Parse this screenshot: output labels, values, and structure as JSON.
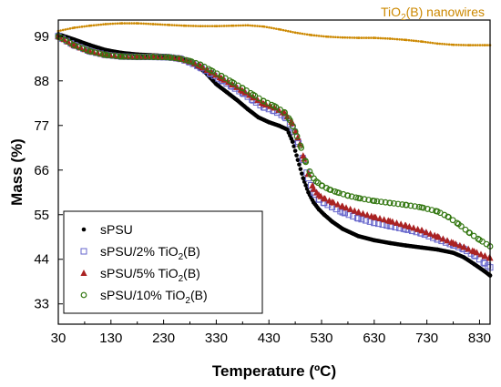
{
  "chart_data": {
    "type": "scatter",
    "xlabel": "Temperature (ºC)",
    "ylabel": "Mass (%)",
    "xlim": [
      30,
      850
    ],
    "ylim": [
      28,
      103
    ],
    "xticks": [
      30,
      130,
      230,
      330,
      430,
      530,
      630,
      730,
      830
    ],
    "yticks": [
      33,
      44,
      55,
      66,
      77,
      88,
      99
    ],
    "grid": false,
    "legend_position": "bottom-left",
    "annotation": {
      "text": "TiO",
      "sub": "2",
      "suffix": "(B) nanowires",
      "color": "#cc8800"
    },
    "series": [
      {
        "name": "sPSU",
        "legend": {
          "main": "sPSU",
          "sub": "",
          "suffix": ""
        },
        "marker": "dot",
        "color": "#000000",
        "x": [
          30,
          60,
          90,
          120,
          150,
          180,
          210,
          240,
          260,
          280,
          300,
          310,
          320,
          330,
          350,
          370,
          390,
          410,
          430,
          450,
          465,
          475,
          485,
          495,
          505,
          515,
          525,
          535,
          550,
          570,
          600,
          630,
          660,
          690,
          720,
          750,
          780,
          800,
          820,
          840,
          850
        ],
        "y": [
          99.5,
          98.2,
          96.8,
          95.6,
          94.9,
          94.5,
          94.3,
          94.1,
          93.6,
          92.6,
          91.0,
          90.0,
          88.6,
          87.2,
          85.2,
          83.2,
          81.0,
          79.0,
          77.8,
          76.9,
          76.0,
          73.0,
          68.5,
          64.0,
          60.5,
          58.0,
          56.3,
          55.0,
          53.3,
          51.5,
          49.7,
          48.7,
          48.0,
          47.4,
          46.9,
          46.4,
          45.6,
          44.5,
          42.8,
          41.0,
          40.0
        ]
      },
      {
        "name": "sPSU/2% TiO2(B)",
        "legend": {
          "main": "sPSU/2% TiO",
          "sub": "2",
          "suffix": "(B)"
        },
        "marker": "open-square",
        "color": "#6666cc",
        "x": [
          30,
          60,
          90,
          120,
          150,
          180,
          210,
          240,
          260,
          280,
          300,
          320,
          340,
          360,
          380,
          400,
          420,
          440,
          460,
          475,
          485,
          495,
          505,
          515,
          525,
          535,
          550,
          570,
          600,
          630,
          660,
          690,
          720,
          750,
          780,
          800,
          820,
          840,
          850
        ],
        "y": [
          99.0,
          96.8,
          95.3,
          94.4,
          94.0,
          93.9,
          93.9,
          93.8,
          93.5,
          92.6,
          91.3,
          89.7,
          88.1,
          86.6,
          85.0,
          83.2,
          81.5,
          80.6,
          79.2,
          76.5,
          73.0,
          68.5,
          64.0,
          60.5,
          58.8,
          57.9,
          56.9,
          55.6,
          54.1,
          53.0,
          52.2,
          51.4,
          50.4,
          48.9,
          47.5,
          46.5,
          45.0,
          43.0,
          42.0
        ]
      },
      {
        "name": "sPSU/5% TiO2(B)",
        "legend": {
          "main": "sPSU/5% TiO",
          "sub": "2",
          "suffix": "(B)"
        },
        "marker": "triangle",
        "color": "#aa2222",
        "x": [
          30,
          60,
          90,
          120,
          150,
          180,
          210,
          240,
          260,
          280,
          300,
          320,
          340,
          360,
          380,
          400,
          420,
          440,
          460,
          475,
          485,
          495,
          505,
          515,
          525,
          535,
          550,
          570,
          600,
          630,
          660,
          690,
          720,
          750,
          780,
          800,
          820,
          840,
          850
        ],
        "y": [
          99.0,
          96.8,
          95.3,
          94.4,
          94.0,
          93.9,
          93.9,
          93.8,
          93.5,
          92.8,
          91.6,
          90.1,
          88.6,
          87.1,
          85.5,
          83.9,
          82.3,
          81.4,
          80.0,
          77.5,
          74.0,
          69.5,
          65.0,
          61.3,
          59.8,
          59.0,
          58.1,
          57.0,
          55.6,
          54.4,
          53.4,
          52.3,
          51.1,
          49.6,
          48.0,
          47.0,
          45.9,
          44.8,
          44.3
        ]
      },
      {
        "name": "sPSU/10% TiO2(B)",
        "legend": {
          "main": "sPSU/10% TiO",
          "sub": "2",
          "suffix": "(B)"
        },
        "marker": "open-circle",
        "color": "#337711",
        "x": [
          30,
          60,
          90,
          120,
          150,
          180,
          210,
          240,
          260,
          280,
          300,
          320,
          340,
          360,
          380,
          400,
          420,
          440,
          460,
          470,
          480,
          490,
          500,
          510,
          520,
          530,
          545,
          560,
          580,
          600,
          630,
          660,
          690,
          720,
          750,
          770,
          790,
          810,
          830,
          850
        ],
        "y": [
          99.0,
          96.8,
          95.3,
          94.4,
          94.0,
          93.9,
          93.9,
          93.8,
          93.5,
          92.9,
          92.0,
          90.6,
          89.2,
          87.7,
          86.2,
          84.6,
          83.0,
          81.8,
          80.2,
          78.3,
          75.5,
          72.0,
          68.0,
          64.8,
          63.2,
          62.2,
          61.2,
          60.5,
          59.7,
          59.1,
          58.4,
          57.9,
          57.4,
          56.8,
          55.8,
          54.5,
          52.7,
          50.6,
          48.8,
          47.2
        ]
      },
      {
        "name": "TiO2(B) nanowires",
        "marker": "small-dot",
        "color": "#cc8800",
        "x": [
          30,
          60,
          90,
          120,
          150,
          180,
          210,
          240,
          270,
          300,
          330,
          360,
          390,
          420,
          450,
          480,
          510,
          540,
          570,
          600,
          630,
          660,
          690,
          720,
          750,
          780,
          810,
          840,
          850
        ],
        "y": [
          100.3,
          101.1,
          101.6,
          102.0,
          102.2,
          102.2,
          102.0,
          101.8,
          101.6,
          101.5,
          101.5,
          101.6,
          101.7,
          101.4,
          100.7,
          99.9,
          99.3,
          98.9,
          98.7,
          98.6,
          98.6,
          98.4,
          98.1,
          97.7,
          97.2,
          96.9,
          96.8,
          96.8,
          96.8
        ]
      }
    ]
  }
}
